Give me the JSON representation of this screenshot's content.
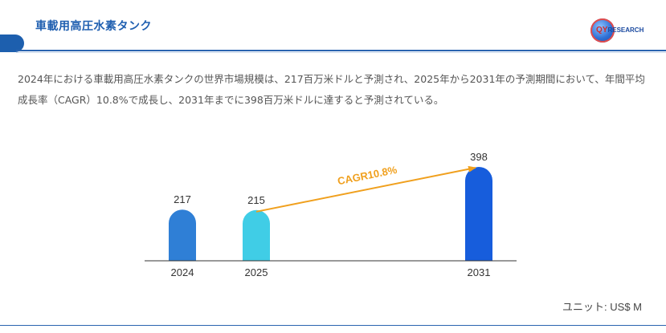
{
  "header": {
    "title": "車載用高圧水素タンク",
    "logo_text_q": "QY",
    "logo_text_rest": "RESEARCH"
  },
  "description": "2024年における車載用高圧水素タンクの世界市場規模は、217百万米ドルと予測され、2025年から2031年の予測期間において、年間平均成長率（CAGR）10.8%で成長し、2031年までに398百万米ドルに達すると予測されている。",
  "unit_label": "ユニット: US$ M",
  "colors": {
    "accent": "#1d5fae",
    "bar_2024": "#2f7fd6",
    "bar_2025": "#40cde6",
    "bar_2031": "#175ddc",
    "cagr": "#f0a01e"
  },
  "chart_data": {
    "type": "bar",
    "categories": [
      "2024",
      "2025",
      "2031"
    ],
    "values": [
      217,
      215,
      398
    ],
    "value_labels": [
      "217",
      "215",
      "398"
    ],
    "annotation": "CAGR10.8%",
    "ylim": [
      0,
      420
    ],
    "grid": false
  }
}
